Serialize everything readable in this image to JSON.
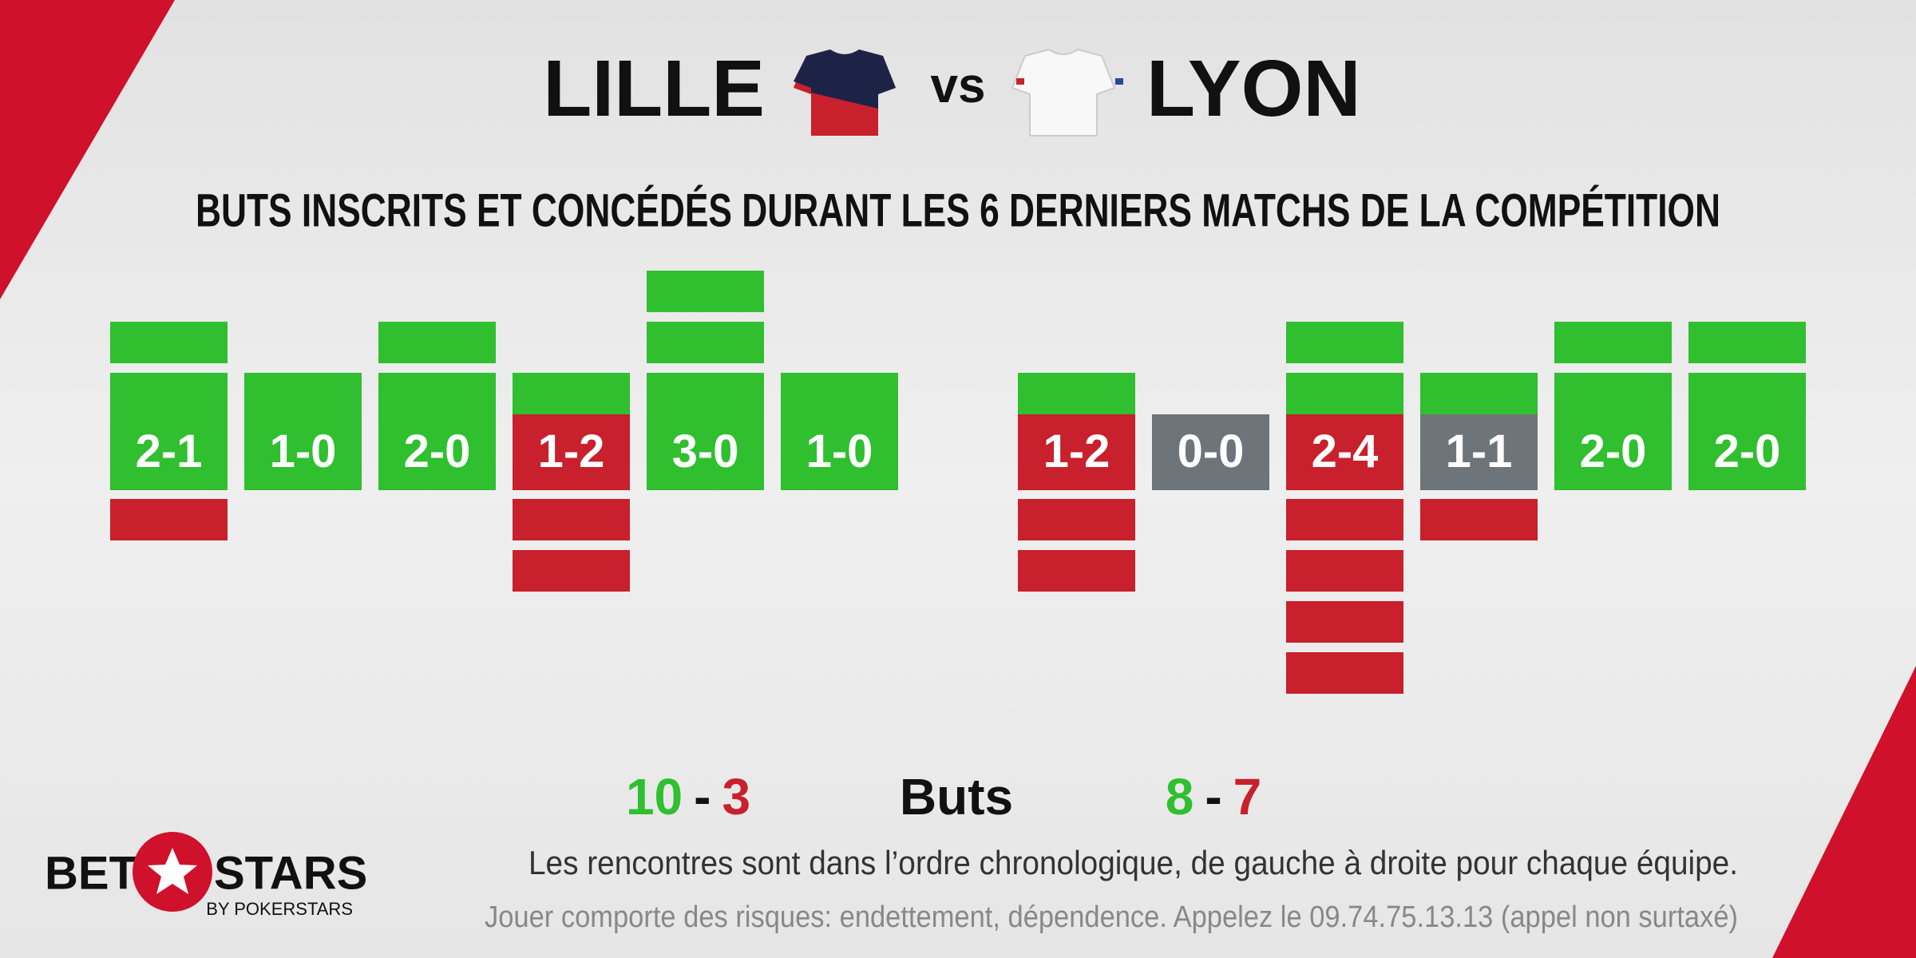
{
  "header": {
    "home": "LILLE",
    "separator": "vs",
    "away": "LYON"
  },
  "subtitle": "BUTS INSCRITS ET CONCÉDÉS DURANT LES 6 DERNIERS MATCHS DE LA COMPÉTITION",
  "colors": {
    "win": "#2fbf2f",
    "loss": "#c8202c",
    "draw": "#6d747a"
  },
  "teams": [
    {
      "matches": [
        {
          "score": "2-1",
          "scored": 2,
          "conceded": 1
        },
        {
          "score": "1-0",
          "scored": 1,
          "conceded": 0
        },
        {
          "score": "2-0",
          "scored": 2,
          "conceded": 0
        },
        {
          "score": "1-2",
          "scored": 1,
          "conceded": 2
        },
        {
          "score": "3-0",
          "scored": 3,
          "conceded": 0
        },
        {
          "score": "1-0",
          "scored": 1,
          "conceded": 0
        }
      ],
      "total_scored": 10,
      "total_conceded": 3
    },
    {
      "matches": [
        {
          "score": "1-2",
          "scored": 1,
          "conceded": 2
        },
        {
          "score": "0-0",
          "scored": 0,
          "conceded": 0
        },
        {
          "score": "2-4",
          "scored": 2,
          "conceded": 4
        },
        {
          "score": "1-1",
          "scored": 1,
          "conceded": 1
        },
        {
          "score": "2-0",
          "scored": 2,
          "conceded": 0
        },
        {
          "score": "2-0",
          "scored": 2,
          "conceded": 0
        }
      ],
      "total_scored": 8,
      "total_conceded": 7
    }
  ],
  "totals_label": "Buts",
  "totals_separator": "-",
  "footnote": "Les rencontres sont dans l’ordre chronologique, de gauche à droite pour chaque équipe.",
  "disclaimer": "Jouer comporte des risques: endettement, dépendence. Appelez le 09.74.75.13.13 (appel non surtaxé)",
  "logo": {
    "left": "BET",
    "right": "STARS",
    "sub": "BY POKERSTARS"
  }
}
